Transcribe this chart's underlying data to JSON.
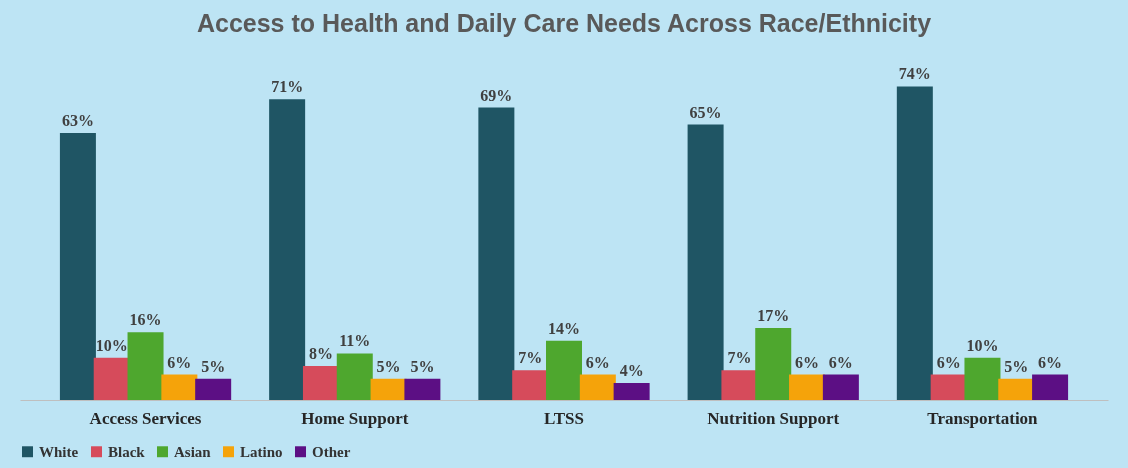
{
  "chart_data": {
    "type": "bar",
    "title": "Access to Health and Daily Care Needs Across Race/Ethnicity",
    "categories": [
      "Access Services",
      "Home Support",
      "LTSS",
      "Nutrition Support",
      "Transportation"
    ],
    "series": [
      {
        "name": "White",
        "color": "#1f5564",
        "values": [
          63,
          71,
          69,
          65,
          74
        ],
        "value_labels": [
          "63%",
          "71%",
          "69%",
          "65%",
          "74%"
        ]
      },
      {
        "name": "Black",
        "color": "#d64b5b",
        "values": [
          10,
          8,
          7,
          7,
          6
        ],
        "value_labels": [
          "10%",
          "8%",
          "7%",
          "7%",
          "6%"
        ]
      },
      {
        "name": "Asian",
        "color": "#4ea72e",
        "values": [
          16,
          11,
          14,
          17,
          10
        ],
        "value_labels": [
          "16%",
          "11%",
          "14%",
          "17%",
          "10%"
        ]
      },
      {
        "name": "Latino",
        "color": "#f5a30a",
        "values": [
          6,
          5,
          6,
          6,
          5
        ],
        "value_labels": [
          "6%",
          "5%",
          "6%",
          "6%",
          "5%"
        ]
      },
      {
        "name": "Other",
        "color": "#5c0f84",
        "values": [
          5,
          5,
          4,
          6,
          6
        ],
        "value_labels": [
          "5%",
          "5%",
          "4%",
          "6%",
          "6%"
        ]
      }
    ],
    "legend": "bottom",
    "grid": false
  }
}
